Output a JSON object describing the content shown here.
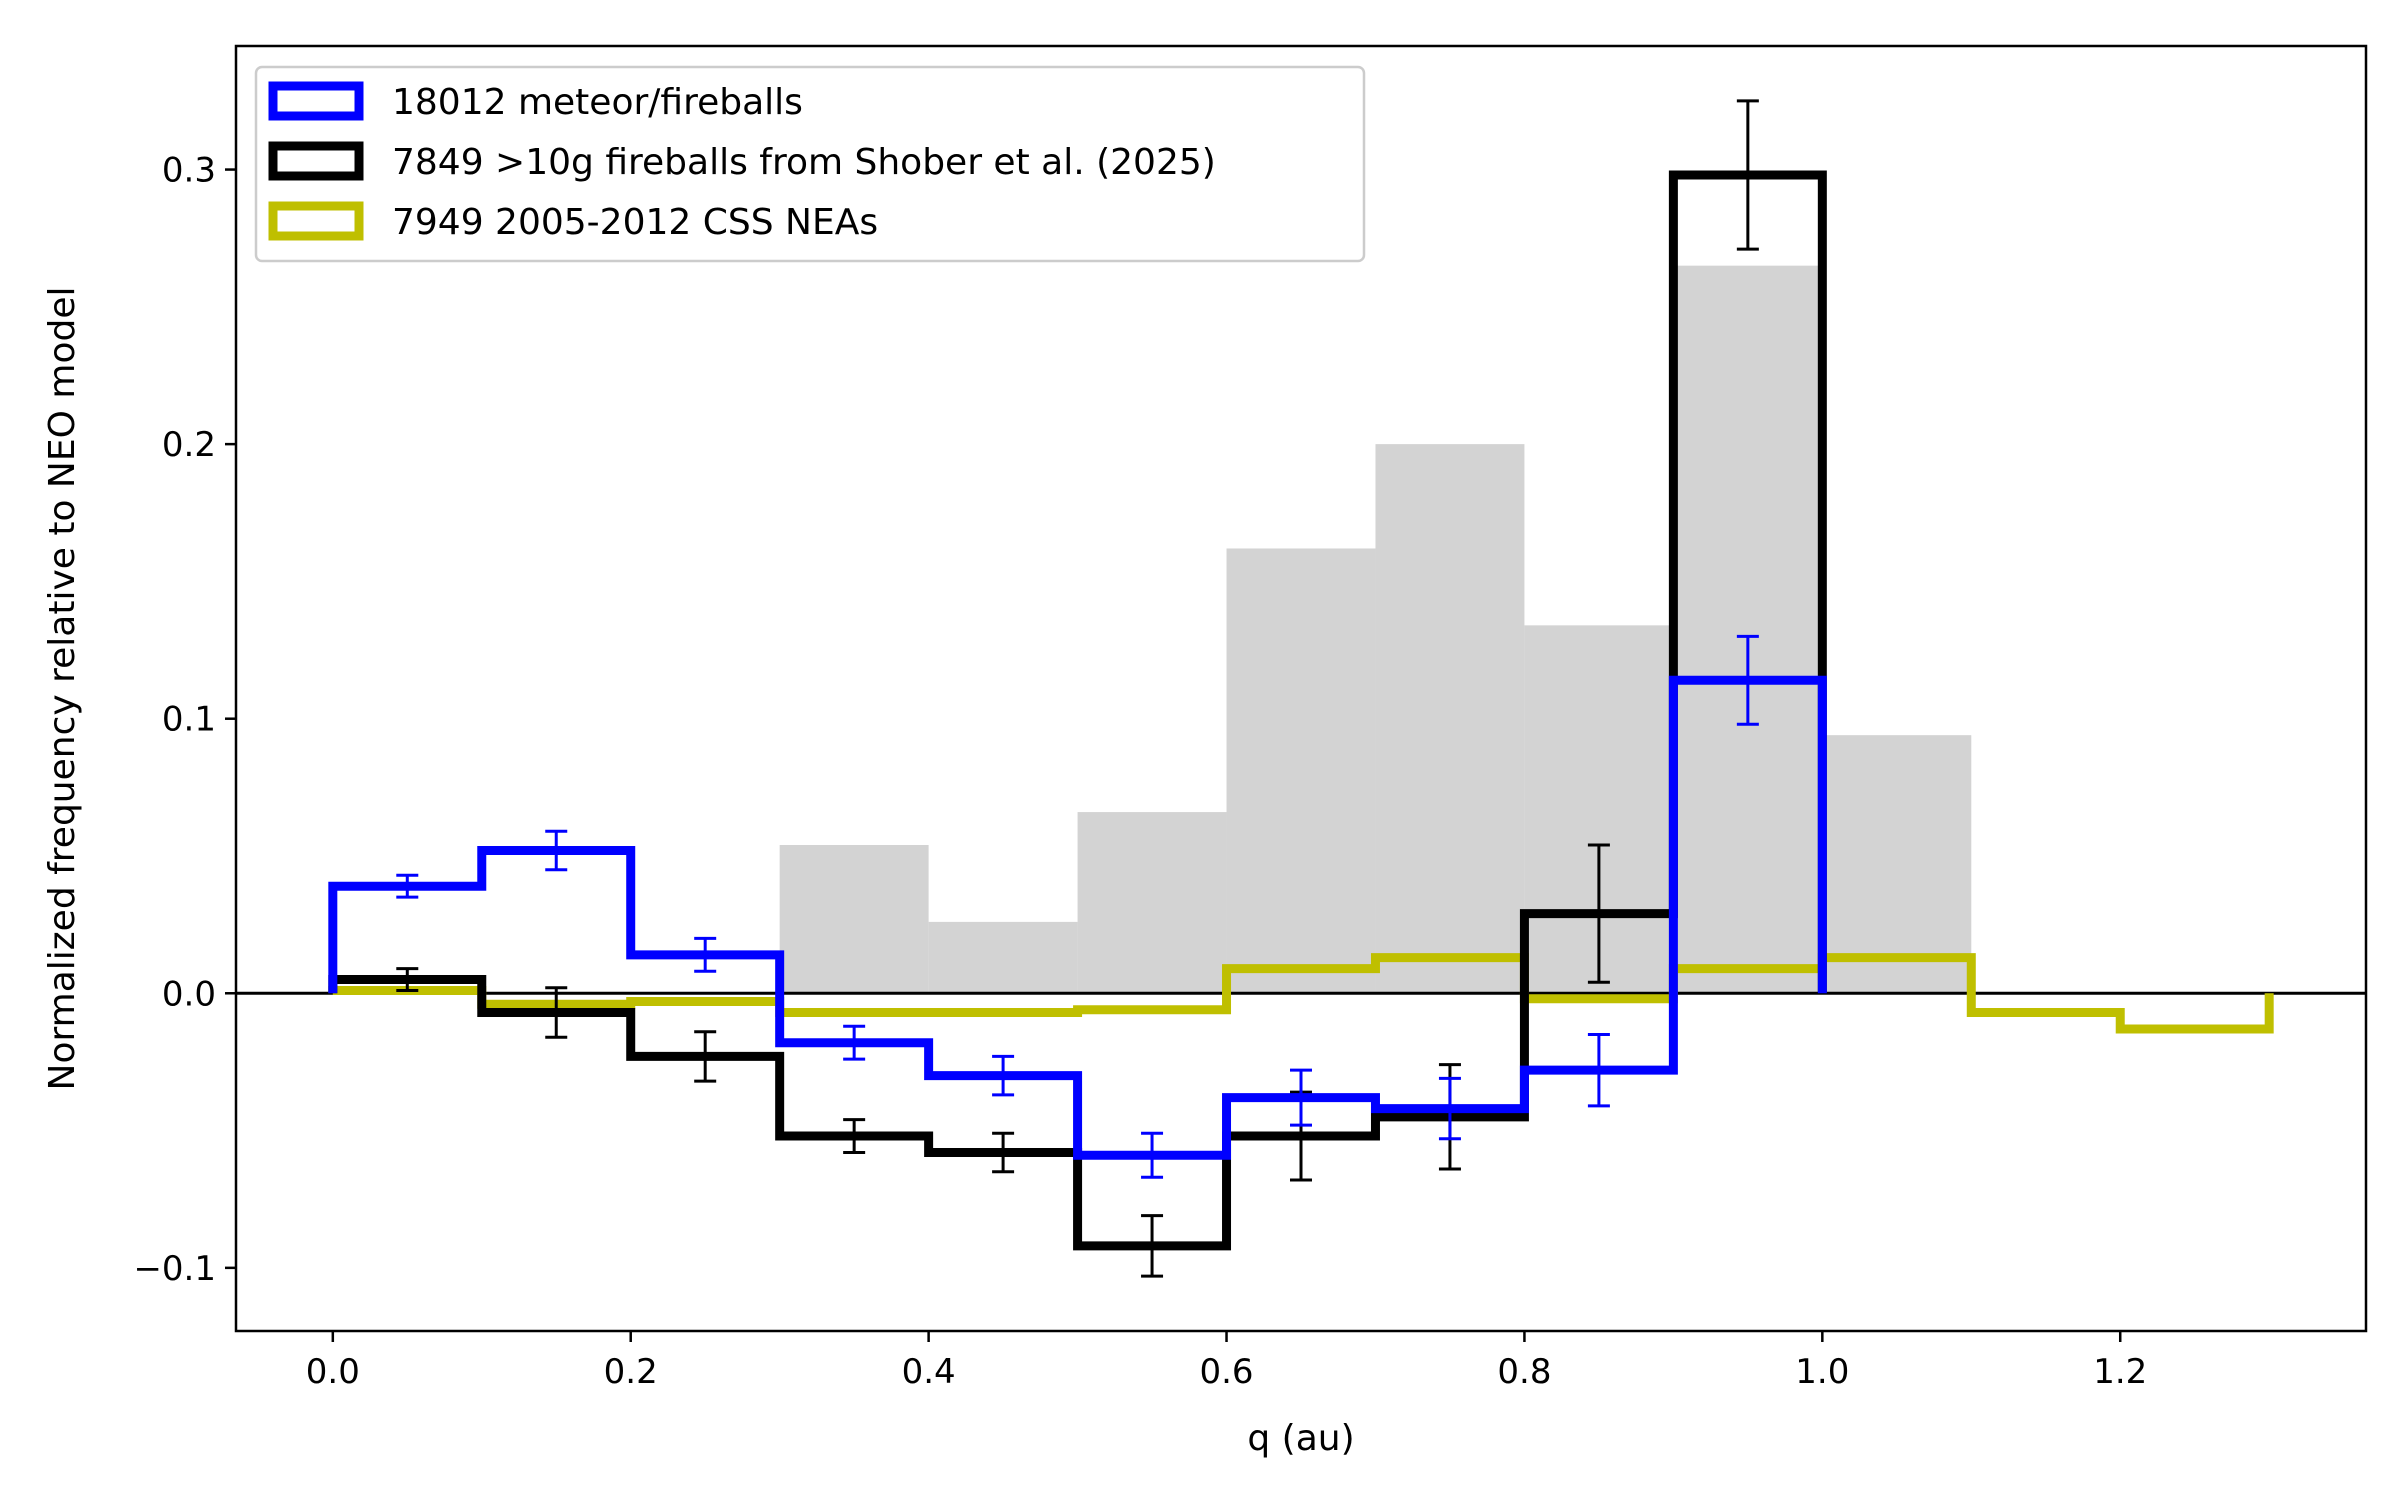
{
  "chart_data": {
    "type": "bar",
    "title": "",
    "xlabel": "q (au)",
    "ylabel": "Normalized frequency relative to NEO model",
    "xlim": [
      -0.065,
      1.365
    ],
    "ylim": [
      -0.123,
      0.345
    ],
    "xticks": [
      0.0,
      0.2,
      0.4,
      0.6,
      0.8,
      1.0,
      1.2
    ],
    "xtick_labels": [
      "0.0",
      "0.2",
      "0.4",
      "0.6",
      "0.8",
      "1.0",
      "1.2"
    ],
    "yticks": [
      -0.1,
      0.0,
      0.1,
      0.2,
      0.3
    ],
    "ytick_labels": [
      "−0.1",
      "0.0",
      "0.1",
      "0.2",
      "0.3"
    ],
    "bin_width": 0.1,
    "legend_position": "top-left",
    "background_bars": {
      "name": "",
      "color": "#d3d3d3",
      "bins": [
        0.3,
        0.4,
        0.5,
        0.6,
        0.7,
        0.8,
        0.9,
        1.0
      ],
      "values": [
        0.054,
        0.026,
        0.066,
        0.162,
        0.2,
        0.134,
        0.265,
        0.094
      ]
    },
    "series": [
      {
        "name": "7949 2005-2012 CSS NEAs",
        "color": "#bfbf00",
        "bins": [
          0.0,
          0.1,
          0.2,
          0.3,
          0.4,
          0.5,
          0.6,
          0.7,
          0.8,
          0.9,
          1.0,
          1.1,
          1.2
        ],
        "values": [
          0.001,
          -0.004,
          -0.003,
          -0.007,
          -0.007,
          -0.006,
          0.009,
          0.013,
          -0.002,
          0.009,
          0.013,
          -0.007,
          -0.013
        ],
        "errors": null
      },
      {
        "name": "7849 >10g fireballs from Shober et al. (2025)",
        "color": "#000000",
        "bins": [
          0.0,
          0.1,
          0.2,
          0.3,
          0.4,
          0.5,
          0.6,
          0.7,
          0.8,
          0.9
        ],
        "values": [
          0.005,
          -0.007,
          -0.023,
          -0.052,
          -0.058,
          -0.092,
          -0.052,
          -0.045,
          0.029,
          0.298
        ],
        "errors": [
          0.004,
          0.009,
          0.009,
          0.006,
          0.007,
          0.011,
          0.016,
          0.019,
          0.025,
          0.027
        ]
      },
      {
        "name": "18012 meteor/fireballs",
        "color": "#0000ff",
        "bins": [
          0.0,
          0.1,
          0.2,
          0.3,
          0.4,
          0.5,
          0.6,
          0.7,
          0.8,
          0.9
        ],
        "values": [
          0.039,
          0.052,
          0.014,
          -0.018,
          -0.03,
          -0.059,
          -0.038,
          -0.042,
          -0.028,
          0.114
        ],
        "errors": [
          0.004,
          0.007,
          0.006,
          0.006,
          0.007,
          0.008,
          0.01,
          0.011,
          0.013,
          0.016
        ]
      }
    ]
  }
}
